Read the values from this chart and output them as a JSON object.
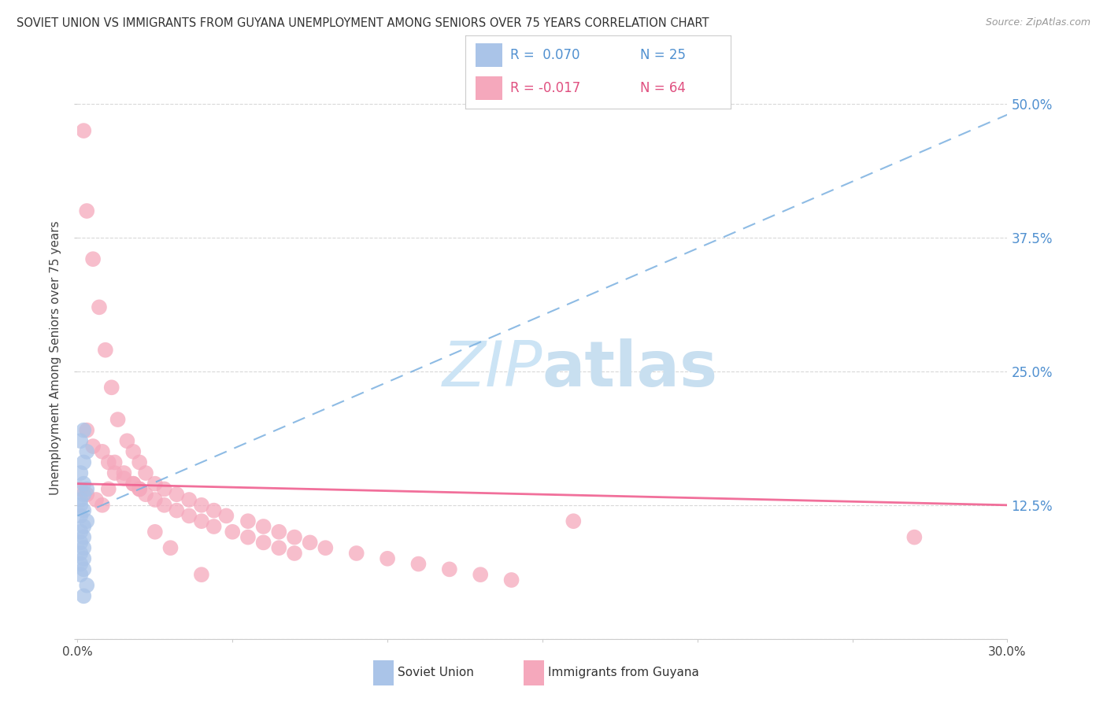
{
  "title": "SOVIET UNION VS IMMIGRANTS FROM GUYANA UNEMPLOYMENT AMONG SENIORS OVER 75 YEARS CORRELATION CHART",
  "source": "Source: ZipAtlas.com",
  "ylabel": "Unemployment Among Seniors over 75 years",
  "x_min": 0.0,
  "x_max": 0.3,
  "y_min": 0.0,
  "y_max": 0.525,
  "y_ticks": [
    0.0,
    0.125,
    0.25,
    0.375,
    0.5
  ],
  "y_tick_labels": [
    "",
    "12.5%",
    "25.0%",
    "37.5%",
    "50.0%"
  ],
  "color_soviet": "#aac4e8",
  "color_guyana": "#f5a8bc",
  "color_soviet_line": "#7ab0e0",
  "color_guyana_line": "#f06090",
  "color_blue_text": "#5090d0",
  "color_pink_text": "#e05080",
  "watermark_color": "#cce4f5",
  "grid_color": "#d8d8d8",
  "soviet_x": [
    0.002,
    0.001,
    0.003,
    0.002,
    0.001,
    0.002,
    0.003,
    0.002,
    0.001,
    0.001,
    0.002,
    0.001,
    0.003,
    0.002,
    0.001,
    0.002,
    0.001,
    0.002,
    0.001,
    0.002,
    0.001,
    0.002,
    0.001,
    0.003,
    0.002
  ],
  "soviet_y": [
    0.195,
    0.185,
    0.175,
    0.165,
    0.155,
    0.145,
    0.14,
    0.135,
    0.13,
    0.125,
    0.12,
    0.115,
    0.11,
    0.105,
    0.1,
    0.095,
    0.09,
    0.085,
    0.08,
    0.075,
    0.07,
    0.065,
    0.06,
    0.05,
    0.04
  ],
  "guyana_x": [
    0.002,
    0.003,
    0.005,
    0.007,
    0.009,
    0.011,
    0.013,
    0.016,
    0.018,
    0.02,
    0.022,
    0.025,
    0.028,
    0.032,
    0.036,
    0.04,
    0.044,
    0.048,
    0.055,
    0.06,
    0.065,
    0.07,
    0.075,
    0.08,
    0.09,
    0.1,
    0.11,
    0.12,
    0.13,
    0.14,
    0.003,
    0.005,
    0.008,
    0.01,
    0.012,
    0.015,
    0.018,
    0.02,
    0.022,
    0.025,
    0.028,
    0.032,
    0.036,
    0.04,
    0.044,
    0.05,
    0.055,
    0.06,
    0.065,
    0.07,
    0.001,
    0.003,
    0.006,
    0.008,
    0.01,
    0.012,
    0.015,
    0.018,
    0.02,
    0.025,
    0.03,
    0.04,
    0.16,
    0.27
  ],
  "guyana_y": [
    0.475,
    0.4,
    0.355,
    0.31,
    0.27,
    0.235,
    0.205,
    0.185,
    0.175,
    0.165,
    0.155,
    0.145,
    0.14,
    0.135,
    0.13,
    0.125,
    0.12,
    0.115,
    0.11,
    0.105,
    0.1,
    0.095,
    0.09,
    0.085,
    0.08,
    0.075,
    0.07,
    0.065,
    0.06,
    0.055,
    0.195,
    0.18,
    0.175,
    0.165,
    0.155,
    0.15,
    0.145,
    0.14,
    0.135,
    0.13,
    0.125,
    0.12,
    0.115,
    0.11,
    0.105,
    0.1,
    0.095,
    0.09,
    0.085,
    0.08,
    0.14,
    0.135,
    0.13,
    0.125,
    0.14,
    0.165,
    0.155,
    0.145,
    0.14,
    0.1,
    0.085,
    0.06,
    0.11,
    0.095
  ],
  "trend_soviet_x0": 0.0,
  "trend_soviet_y0": 0.115,
  "trend_soviet_x1": 0.3,
  "trend_soviet_y1": 0.49,
  "trend_guyana_x0": 0.0,
  "trend_guyana_y0": 0.145,
  "trend_guyana_x1": 0.3,
  "trend_guyana_y1": 0.125
}
